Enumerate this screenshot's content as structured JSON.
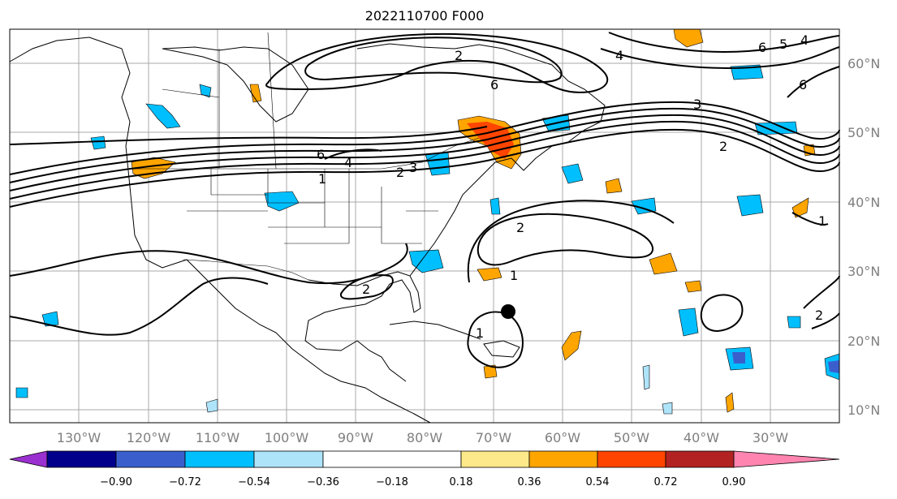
{
  "title": "2022110700 F000",
  "lon_labels": [
    "130°W",
    "120°W",
    "110°W",
    "100°W",
    "90°W",
    "80°W",
    "70°W",
    "60°W",
    "50°W",
    "40°W",
    "30°W"
  ],
  "lat_labels": [
    "60°N",
    "50°N",
    "40°N",
    "30°N",
    "20°N",
    "10°N"
  ],
  "contour_labels": [
    "6",
    "4",
    "2",
    "6",
    "4",
    "5",
    "6",
    "3",
    "2",
    "6",
    "4",
    "1",
    "2",
    "3",
    "2",
    "1",
    "2",
    "1",
    "2",
    "1"
  ],
  "colorbar": {
    "ticks": [
      "−0.90",
      "−0.72",
      "−0.54",
      "−0.36",
      "−0.18",
      "0.18",
      "0.36",
      "0.54",
      "0.72",
      "0.90"
    ],
    "colors": [
      "#9b30d0",
      "#00008b",
      "#3a5fcd",
      "#00bfff",
      "#aee4fa",
      "#ffffff",
      "#fde98a",
      "#ffa500",
      "#ff4500",
      "#b22222",
      "#ff85b0"
    ]
  },
  "colors": {
    "land_lines": "#000000",
    "grid": "#a9a9a9",
    "positive_weak": "#fde98a",
    "positive_mid": "#ffa500",
    "positive_strong": "#ff4500",
    "positive_max": "#b22222",
    "negative_weak": "#aee4fa",
    "negative_mid": "#00bfff",
    "negative_strong": "#3a5fcd"
  }
}
